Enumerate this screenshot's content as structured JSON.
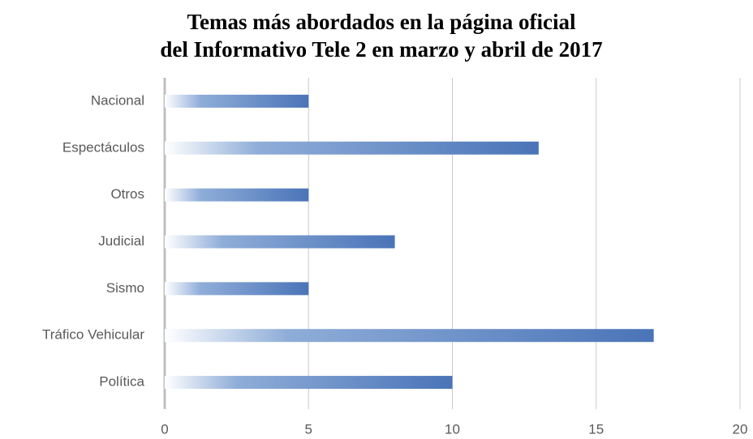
{
  "chart_data": {
    "type": "bar",
    "orientation": "horizontal",
    "title": [
      "Temas más abordados en la página oficial",
      "del Informativo Tele 2 en marzo y abril de 2017"
    ],
    "categories": [
      "Nacional",
      "Espectáculos",
      "Otros",
      "Judicial",
      "Sismo",
      "Tráfico Vehicular",
      "Política"
    ],
    "values": [
      5,
      13,
      5,
      8,
      5,
      17,
      10
    ],
    "color": "#4a74b8",
    "xlim": [
      0,
      20
    ],
    "xticks": [
      0,
      5,
      10,
      15,
      20
    ],
    "grid": true
  }
}
